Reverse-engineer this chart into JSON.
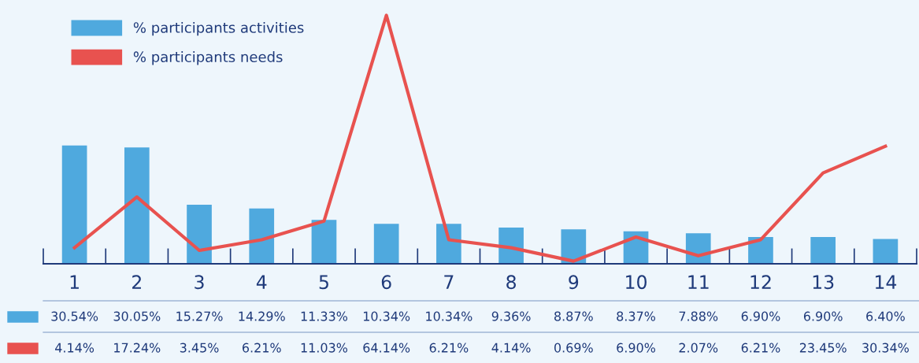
{
  "chart_data": {
    "type": "bar",
    "categories": [
      "1",
      "2",
      "3",
      "4",
      "5",
      "6",
      "7",
      "8",
      "9",
      "10",
      "11",
      "12",
      "13",
      "14"
    ],
    "series": [
      {
        "name": "% participants activities",
        "color": "#4fa9de",
        "values": [
          30.54,
          30.05,
          15.27,
          14.29,
          11.33,
          10.34,
          10.34,
          9.36,
          8.87,
          8.37,
          7.88,
          6.9,
          6.9,
          6.4
        ],
        "value_labels": [
          "30.54%",
          "30.05%",
          "15.27%",
          "14.29%",
          "11.33%",
          "10.34%",
          "10.34%",
          "9.36%",
          "8.87%",
          "8.37%",
          "7.88%",
          "6.90%",
          "6.90%",
          "6.40%"
        ]
      },
      {
        "name": "% participants needs",
        "type": "line",
        "color": "#e8524f",
        "values": [
          4.14,
          17.24,
          3.45,
          6.21,
          11.03,
          64.14,
          6.21,
          4.14,
          0.69,
          6.9,
          2.07,
          6.21,
          23.45,
          30.34
        ],
        "value_labels": [
          "4.14%",
          "17.24%",
          "3.45%",
          "6.21%",
          "11.03%",
          "64.14%",
          "6.21%",
          "4.14%",
          "0.69%",
          "6.90%",
          "2.07%",
          "6.21%",
          "23.45%",
          "30.34%"
        ]
      }
    ],
    "legend": "top left",
    "marker": "none",
    "line_style": "solid",
    "tick_labels": "x"
  }
}
